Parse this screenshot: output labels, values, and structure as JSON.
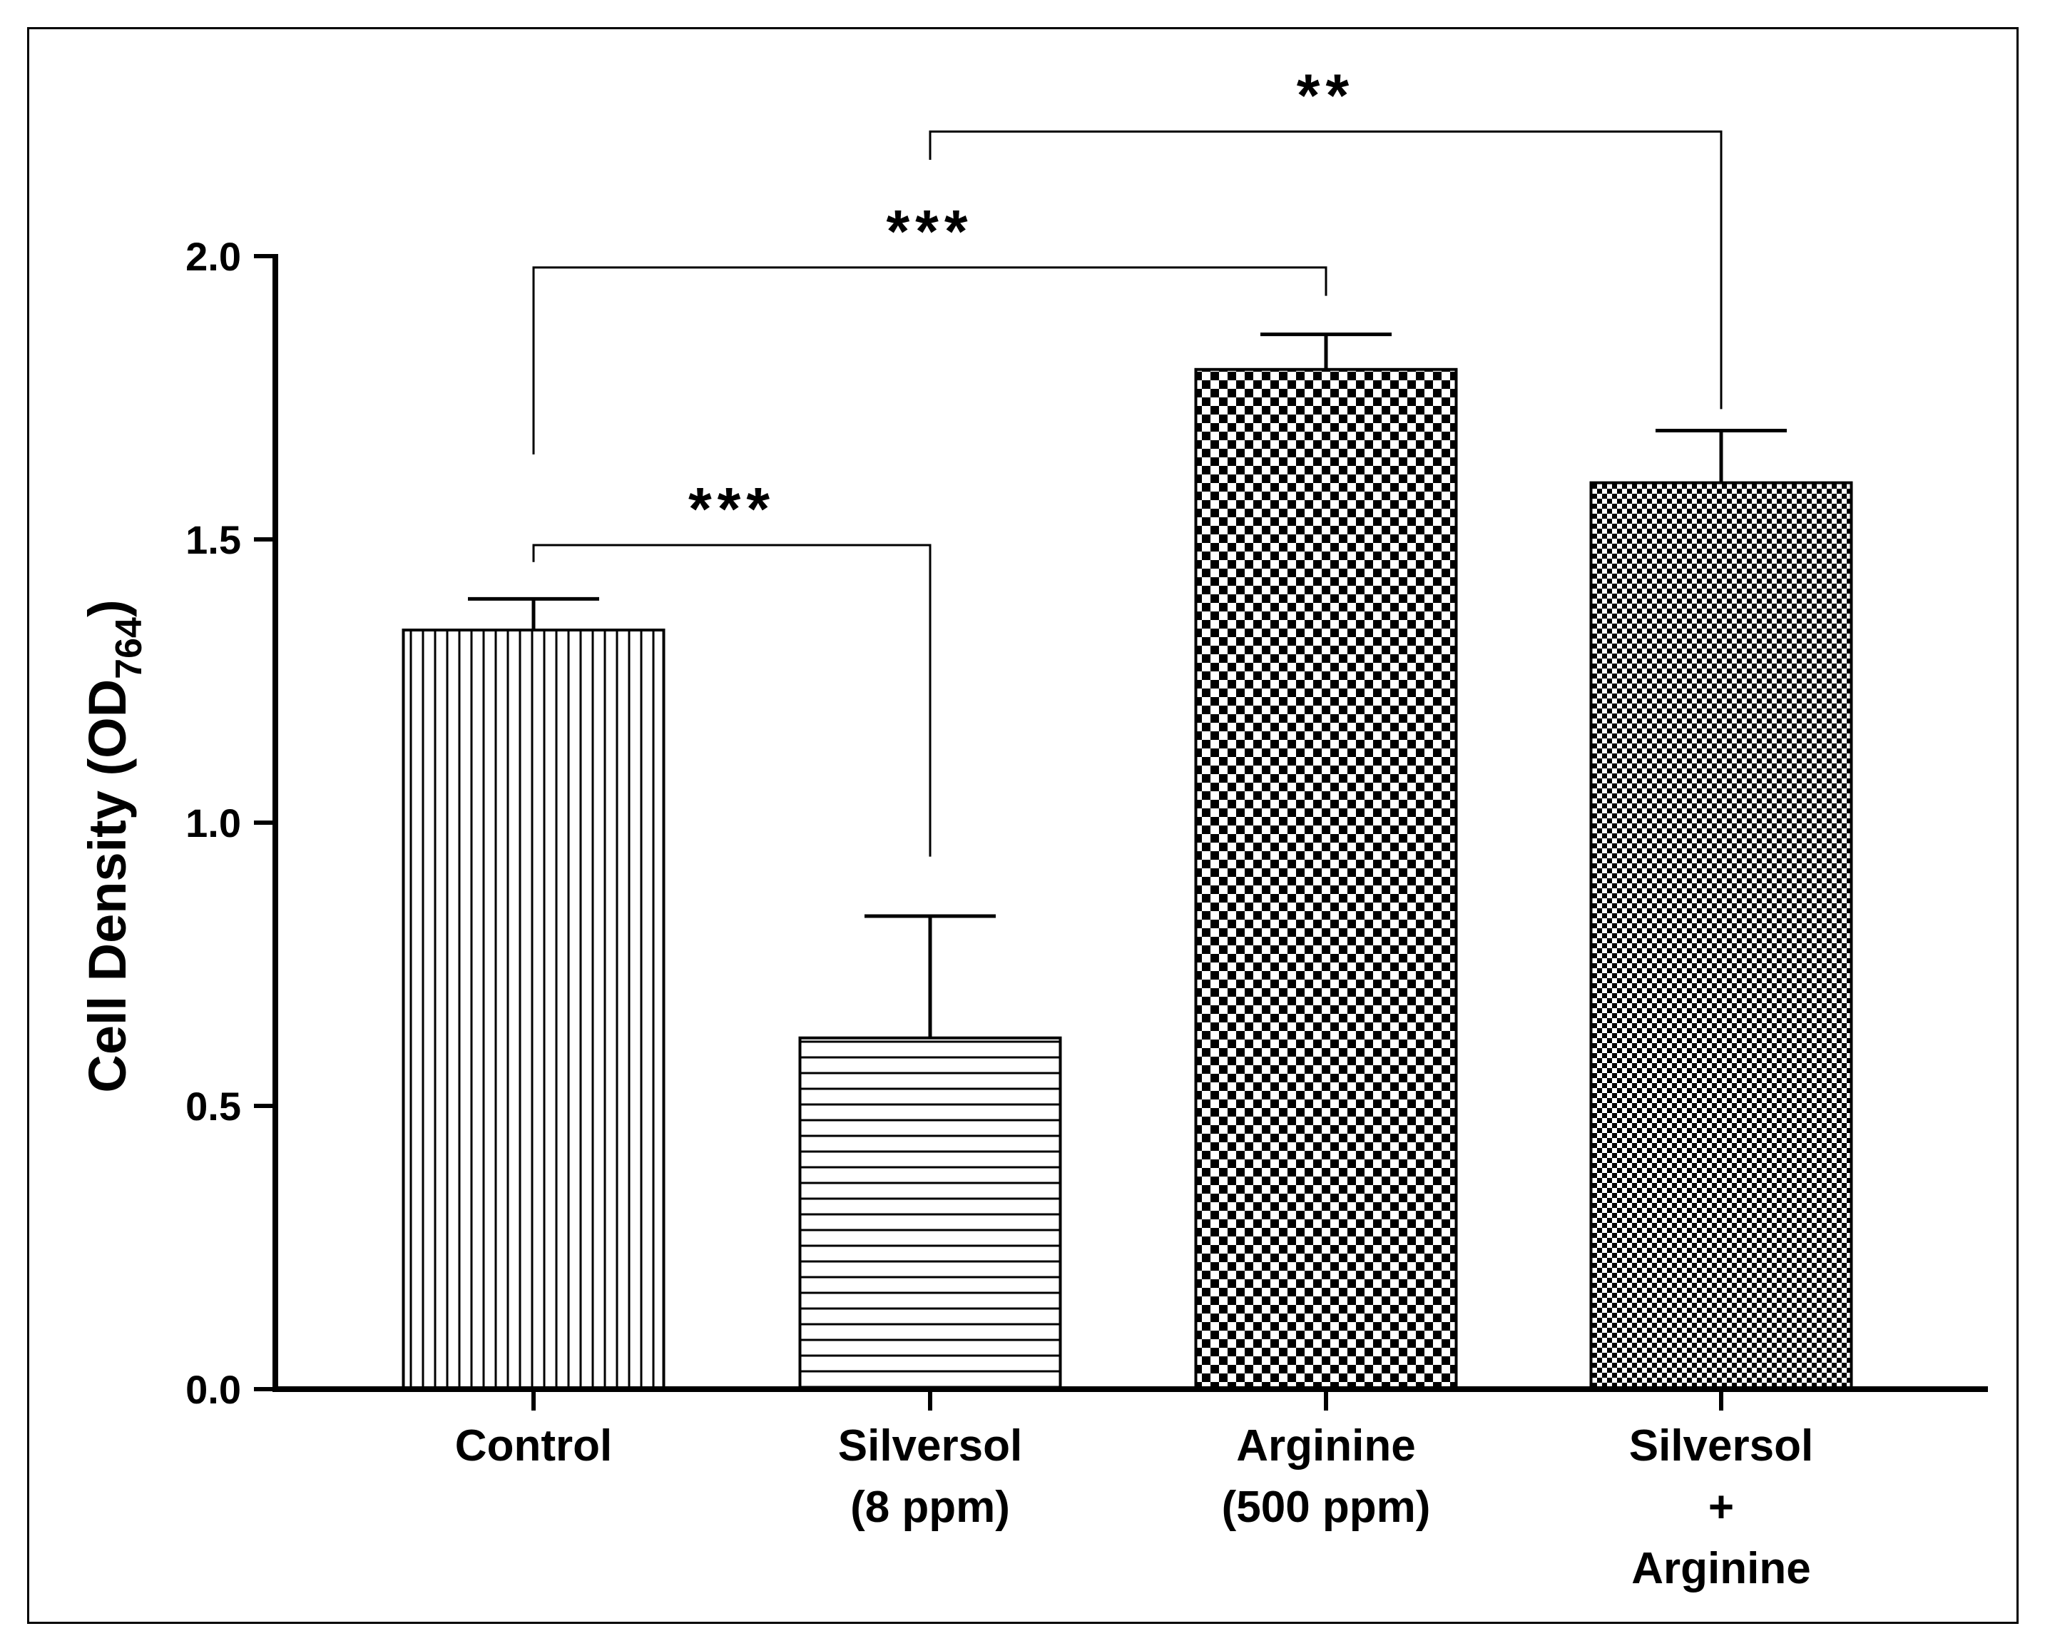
{
  "chart_data": {
    "type": "bar",
    "title": "",
    "xlabel": "",
    "ylabel_main": "Cell Density (OD",
    "ylabel_sub": "764",
    "ylabel_close": ")",
    "ylim": [
      0,
      2.0
    ],
    "yticks": [
      "0.0",
      "0.5",
      "1.0",
      "1.5",
      "2.0"
    ],
    "yticks_values": [
      0,
      0.5,
      1.0,
      1.5,
      2.0
    ],
    "categories": [
      {
        "id": "control",
        "lines": [
          "Control"
        ],
        "value": 1.34,
        "error": 0.055,
        "pattern": "vertical-lines"
      },
      {
        "id": "silversol",
        "lines": [
          "Silversol",
          "(8 ppm)"
        ],
        "value": 0.62,
        "error": 0.215,
        "pattern": "horizontal-lines"
      },
      {
        "id": "arginine",
        "lines": [
          "Arginine",
          "(500 ppm)"
        ],
        "value": 1.8,
        "error": 0.062,
        "pattern": "checker-large"
      },
      {
        "id": "silversol-arginine",
        "lines": [
          "Silversol",
          "+",
          "Arginine"
        ],
        "value": 1.6,
        "error": 0.092,
        "pattern": "checker-small"
      }
    ],
    "significance": [
      {
        "from": 0,
        "to": 1,
        "label": "***",
        "bracket_y": 1.49,
        "left_foot": 1.46,
        "right_foot": 0.94
      },
      {
        "from": 0,
        "to": 2,
        "label": "***",
        "bracket_y": 1.98,
        "left_foot": 1.65,
        "right_foot": 1.93
      },
      {
        "from": 1,
        "to": 3,
        "label": "**",
        "bracket_y": 2.22,
        "left_foot": 2.17,
        "right_foot": 1.73
      }
    ]
  },
  "colors": {
    "ink": "#000000",
    "background": "#ffffff"
  }
}
